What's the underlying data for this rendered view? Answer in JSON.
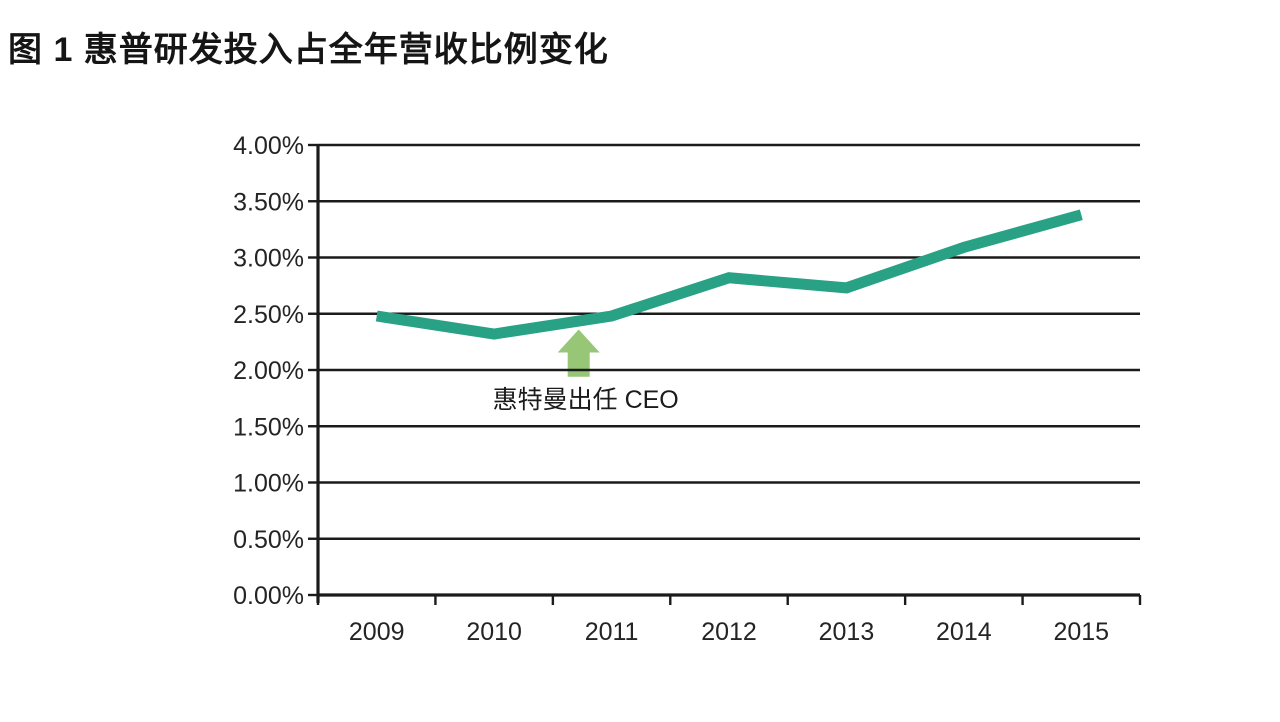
{
  "page": {
    "title": "图 1 惠普研发投入占全年营收比例变化"
  },
  "chart_data": {
    "type": "line",
    "title": "图 1 惠普研发投入占全年营收比例变化",
    "categories": [
      "2009",
      "2010",
      "2011",
      "2012",
      "2013",
      "2014",
      "2015"
    ],
    "series": [
      {
        "name": "研发投入占全年营收比例",
        "values": [
          2.48,
          2.32,
          2.48,
          2.82,
          2.73,
          3.09,
          3.38
        ]
      }
    ],
    "y_axis": {
      "min": 0,
      "max": 4,
      "step": 0.5,
      "tick_labels": [
        "0.00%",
        "0.50%",
        "1.00%",
        "1.50%",
        "2.00%",
        "2.50%",
        "3.00%",
        "3.50%",
        "4.00%"
      ]
    },
    "x_axis": {
      "tick_labels": [
        "2009",
        "2010",
        "2011",
        "2012",
        "2013",
        "2014",
        "2015"
      ]
    },
    "grid": true,
    "legend_position": "none",
    "annotation": {
      "text": "惠特曼出任 CEO",
      "arrow_category_x": 1.72,
      "arrow_tip_value": 2.36,
      "arrow_base_value": 1.94
    },
    "colors": {
      "line": "#28a185",
      "arrow": "#97c677",
      "axis": "#1b1b1b",
      "text": "#242424"
    }
  }
}
